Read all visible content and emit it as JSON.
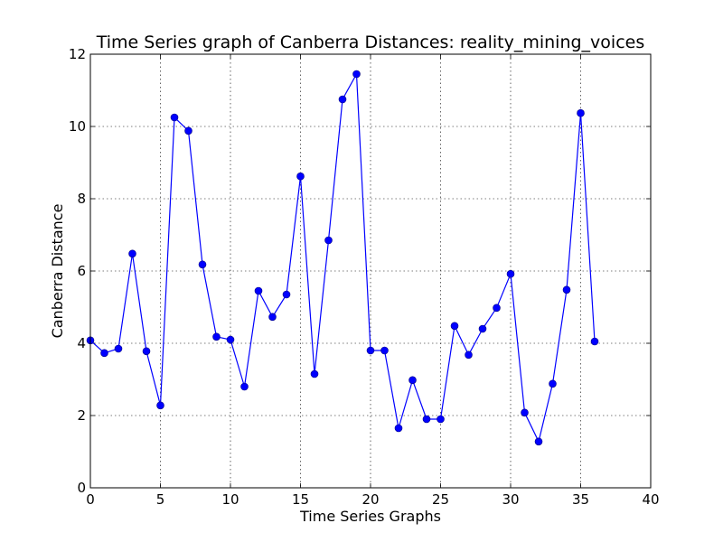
{
  "chart_data": {
    "type": "line",
    "title": "Time Series graph of Canberra Distances: reality_mining_voices",
    "xlabel": "Time Series Graphs",
    "ylabel": "Canberra Distance",
    "xlim": [
      0,
      40
    ],
    "ylim": [
      0,
      12
    ],
    "xticks": [
      0,
      5,
      10,
      15,
      20,
      25,
      30,
      35,
      40
    ],
    "yticks": [
      0,
      2,
      4,
      6,
      8,
      10,
      12
    ],
    "grid": true,
    "line_color": "#0000ff",
    "marker": "circle",
    "x": [
      0,
      1,
      2,
      3,
      4,
      5,
      6,
      7,
      8,
      9,
      10,
      11,
      12,
      13,
      14,
      15,
      16,
      17,
      18,
      19,
      20,
      21,
      22,
      23,
      24,
      25,
      26,
      27,
      28,
      29,
      30,
      31,
      32,
      33,
      34,
      35,
      36
    ],
    "y": [
      4.08,
      3.73,
      3.85,
      6.48,
      3.78,
      2.28,
      10.25,
      9.88,
      6.18,
      4.18,
      4.1,
      2.8,
      5.45,
      4.73,
      5.35,
      8.62,
      3.15,
      6.85,
      10.75,
      11.45,
      3.8,
      3.8,
      1.65,
      2.98,
      1.9,
      1.9,
      4.48,
      3.68,
      4.4,
      4.98,
      5.92,
      2.08,
      1.28,
      2.88,
      5.48,
      10.37,
      4.05
    ]
  }
}
